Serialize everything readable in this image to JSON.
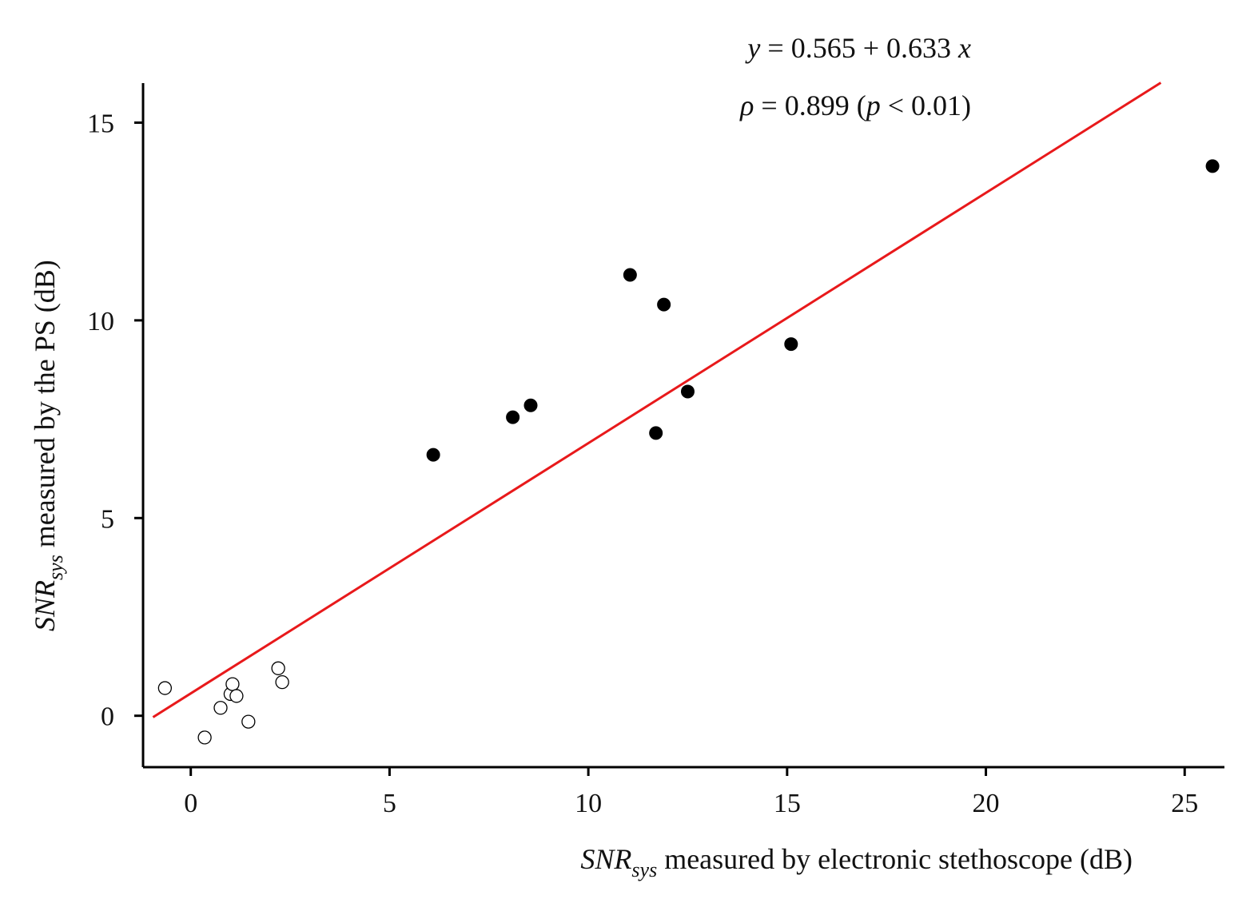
{
  "chart_data": {
    "type": "scatter",
    "title": "",
    "xlabel": {
      "symbol": "SNR",
      "subscript": "sys",
      "rest": " measured by electronic stethoscope (dB)"
    },
    "ylabel": {
      "symbol": "SNR",
      "subscript": "sys",
      "rest": " measured by the PS (dB)"
    },
    "xlim": [
      -1.2,
      26
    ],
    "ylim": [
      -1.3,
      16
    ],
    "xticks": [
      0,
      5,
      10,
      15,
      20,
      25
    ],
    "yticks": [
      0,
      5,
      10,
      15
    ],
    "xtick_labels": [
      "0",
      "5",
      "10",
      "15",
      "20",
      "25"
    ],
    "ytick_labels": [
      "0",
      "5",
      "10",
      "15"
    ],
    "grid": false,
    "series": [
      {
        "name": "filled",
        "marker": "filled-circle",
        "color": "#000000",
        "x": [
          6.1,
          8.1,
          8.55,
          11.05,
          11.7,
          11.9,
          12.5,
          15.1,
          25.7
        ],
        "y": [
          6.6,
          7.55,
          7.85,
          11.15,
          7.15,
          10.4,
          8.2,
          9.4,
          13.9
        ]
      },
      {
        "name": "open",
        "marker": "open-circle",
        "color": "#000000",
        "x": [
          -0.65,
          0.35,
          0.75,
          1.0,
          1.05,
          1.15,
          1.45,
          2.2,
          2.3
        ],
        "y": [
          0.7,
          -0.55,
          0.2,
          0.55,
          0.8,
          0.5,
          -0.15,
          1.2,
          0.85
        ]
      }
    ],
    "regression": {
      "intercept": 0.565,
      "slope": 0.633,
      "x_range": [
        -0.95,
        24.4
      ],
      "color": "#e8191b"
    },
    "annotations": {
      "equation": {
        "y": "y",
        "eq1": " = 0.565 + 0.633 ",
        "x": "x"
      },
      "correlation": {
        "rho": "ρ",
        "eq1": " = 0.899 (",
        "p": "p",
        "eq2": " < 0.01)"
      }
    }
  }
}
